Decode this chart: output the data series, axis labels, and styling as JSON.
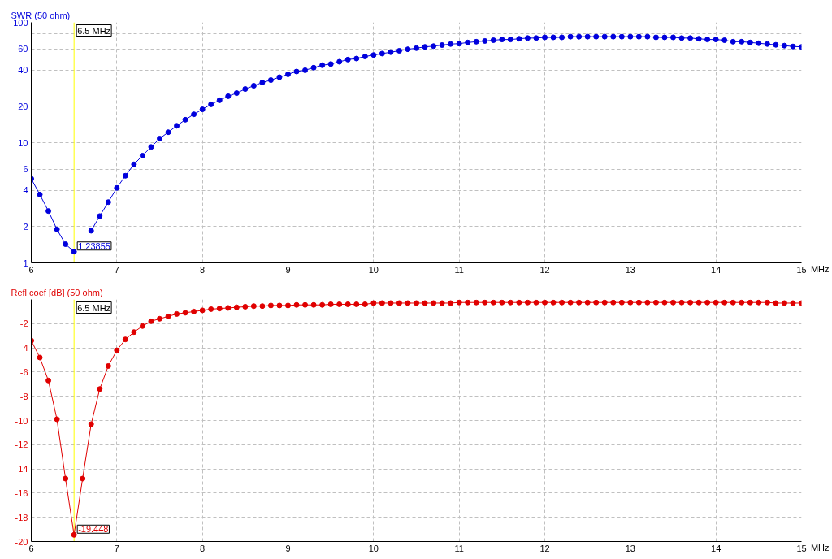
{
  "chart_data": [
    {
      "type": "line",
      "ylabel": "SWR (50 ohm)",
      "xlabel": "MHz",
      "log": "y",
      "grid": true,
      "marker": "circle",
      "x": [
        6,
        6.1,
        6.2,
        6.3,
        6.4,
        6.5,
        6.6,
        6.7,
        6.8,
        6.9,
        7,
        7.1,
        7.2,
        7.3,
        7.4,
        7.5,
        7.6,
        7.7,
        7.8,
        7.9,
        8,
        8.1,
        8.2,
        8.3,
        8.4,
        8.5,
        8.6,
        8.7,
        8.8,
        8.9,
        9,
        9.1,
        9.2,
        9.3,
        9.4,
        9.5,
        9.6,
        9.7,
        9.8,
        9.9,
        10,
        10.1,
        10.2,
        10.3,
        10.4,
        10.5,
        10.6,
        10.7,
        10.8,
        10.9,
        11,
        11.1,
        11.2,
        11.3,
        11.4,
        11.5,
        11.6,
        11.7,
        11.8,
        11.9,
        12,
        12.1,
        12.2,
        12.3,
        12.4,
        12.5,
        12.6,
        12.7,
        12.8,
        12.9,
        13,
        13.1,
        13.2,
        13.3,
        13.4,
        13.5,
        13.6,
        13.7,
        13.8,
        13.9,
        14,
        14.1,
        14.2,
        14.3,
        14.4,
        14.5,
        14.6,
        14.7,
        14.8,
        14.9,
        15
      ],
      "series": [
        {
          "color": "#0000dd",
          "values": [
            5.0,
            3.7,
            2.7,
            1.9,
            1.43,
            1.23855,
            null,
            1.85,
            2.45,
            3.2,
            4.2,
            5.3,
            6.6,
            7.8,
            9.2,
            10.8,
            12.2,
            13.8,
            15.5,
            17.2,
            18.9,
            20.8,
            22.5,
            24.3,
            25.8,
            27.9,
            29.7,
            31.6,
            33.1,
            35,
            37,
            39,
            40,
            42,
            44,
            45,
            47,
            49,
            50,
            52,
            53.5,
            55,
            56.5,
            58,
            59.7,
            61,
            62.5,
            63.4,
            64.7,
            66,
            66.5,
            68,
            69,
            70,
            71,
            72,
            72,
            73,
            74,
            74,
            75,
            75,
            75,
            76,
            76,
            76,
            76,
            76,
            76,
            76,
            76,
            76,
            76,
            75,
            75,
            75,
            74,
            74,
            73,
            72,
            72,
            71,
            69,
            69,
            68,
            67,
            66,
            65,
            64,
            63,
            62.5
          ]
        }
      ],
      "xlim": [
        6,
        15
      ],
      "xticks": [
        6,
        7,
        8,
        9,
        10,
        11,
        12,
        13,
        14,
        15
      ],
      "ylim": [
        1,
        100
      ],
      "yticks": [
        1,
        2,
        4,
        6,
        {
          "value": 8,
          "label": null
        },
        10,
        20,
        40,
        60,
        {
          "value": 80,
          "label": null
        },
        100
      ],
      "ref_lines": [
        {
          "axis": "x",
          "value": 6.5,
          "label": "6.5 MHz",
          "color": "#ffff00"
        }
      ],
      "annotations": [
        {
          "text": "1.23855",
          "x": 6.5,
          "y": 1.23855
        }
      ]
    },
    {
      "type": "line",
      "ylabel": "Refl coef [dB] (50 ohm)",
      "xlabel": "MHz",
      "grid": true,
      "marker": "circle",
      "x": [
        6,
        6.1,
        6.2,
        6.3,
        6.4,
        6.5,
        6.6,
        6.7,
        6.8,
        6.9,
        7,
        7.1,
        7.2,
        7.3,
        7.4,
        7.5,
        7.6,
        7.7,
        7.8,
        7.9,
        8,
        8.1,
        8.2,
        8.3,
        8.4,
        8.5,
        8.6,
        8.7,
        8.8,
        8.9,
        9,
        9.1,
        9.2,
        9.3,
        9.4,
        9.5,
        9.6,
        9.7,
        9.8,
        9.9,
        10,
        10.1,
        10.2,
        10.3,
        10.4,
        10.5,
        10.6,
        10.7,
        10.8,
        10.9,
        11,
        11.1,
        11.2,
        11.3,
        11.4,
        11.5,
        11.6,
        11.7,
        11.8,
        11.9,
        12,
        12.1,
        12.2,
        12.3,
        12.4,
        12.5,
        12.6,
        12.7,
        12.8,
        12.9,
        13,
        13.1,
        13.2,
        13.3,
        13.4,
        13.5,
        13.6,
        13.7,
        13.8,
        13.9,
        14,
        14.1,
        14.2,
        14.3,
        14.4,
        14.5,
        14.6,
        14.7,
        14.8,
        14.9,
        15
      ],
      "series": [
        {
          "color": "#e00000",
          "values": [
            -3.4,
            -4.8,
            -6.7,
            -9.9,
            -14.8,
            -19.448,
            -14.8,
            -10.3,
            -7.4,
            -5.5,
            -4.2,
            -3.3,
            -2.7,
            -2.2,
            -1.8,
            -1.6,
            -1.4,
            -1.2,
            -1.1,
            -1.0,
            -0.9,
            -0.8,
            -0.75,
            -0.7,
            -0.65,
            -0.6,
            -0.55,
            -0.55,
            -0.5,
            -0.5,
            -0.5,
            -0.45,
            -0.45,
            -0.45,
            -0.45,
            -0.4,
            -0.4,
            -0.4,
            -0.4,
            -0.4,
            -0.3,
            -0.3,
            -0.3,
            -0.3,
            -0.3,
            -0.3,
            -0.3,
            -0.3,
            -0.3,
            -0.3,
            -0.25,
            -0.25,
            -0.25,
            -0.25,
            -0.25,
            -0.25,
            -0.25,
            -0.25,
            -0.25,
            -0.25,
            -0.25,
            -0.25,
            -0.25,
            -0.25,
            -0.25,
            -0.25,
            -0.25,
            -0.25,
            -0.25,
            -0.25,
            -0.25,
            -0.25,
            -0.25,
            -0.25,
            -0.25,
            -0.25,
            -0.25,
            -0.25,
            -0.25,
            -0.25,
            -0.25,
            -0.25,
            -0.25,
            -0.25,
            -0.25,
            -0.25,
            -0.25,
            -0.3,
            -0.3,
            -0.3,
            -0.3
          ]
        }
      ],
      "xlim": [
        6,
        15
      ],
      "xticks": [
        6,
        7,
        8,
        9,
        10,
        11,
        12,
        13,
        14,
        15
      ],
      "ylim": [
        -20,
        0
      ],
      "yticks": [
        -20,
        -18,
        -16,
        -14,
        -12,
        -10,
        -8,
        -6,
        -4,
        -2
      ],
      "ref_lines": [
        {
          "axis": "x",
          "value": 6.5,
          "label": "6.5 MHz",
          "color": "#ffff00"
        }
      ],
      "annotations": [
        {
          "text": "-19.448",
          "x": 6.5,
          "y": -19.448
        }
      ]
    }
  ]
}
